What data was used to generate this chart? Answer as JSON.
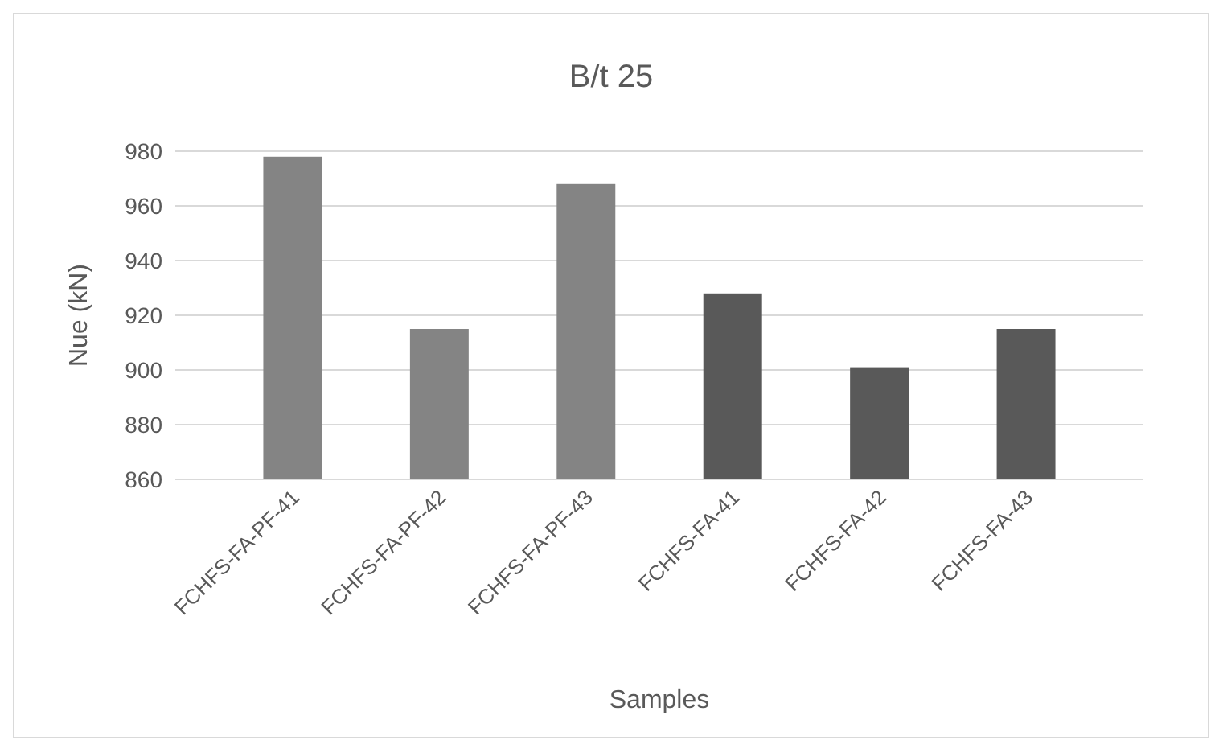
{
  "chart_data": {
    "type": "bar",
    "title": "B/t 25",
    "xlabel": "Samples",
    "ylabel": "Nue (kN)",
    "categories": [
      "FCHFS-FA-PF-41",
      "FCHFS-FA-PF-42",
      "FCHFS-FA-PF-43",
      "FCHFS-FA-41",
      "FCHFS-FA-42",
      "FCHFS-FA-43"
    ],
    "values": [
      978,
      915,
      968,
      928,
      901,
      915
    ],
    "colors": [
      "#848484",
      "#848484",
      "#848484",
      "#595959",
      "#595959",
      "#595959"
    ],
    "ylim": [
      860,
      980
    ],
    "yticks": [
      860,
      880,
      900,
      920,
      940,
      960,
      980
    ],
    "grid": "y"
  }
}
